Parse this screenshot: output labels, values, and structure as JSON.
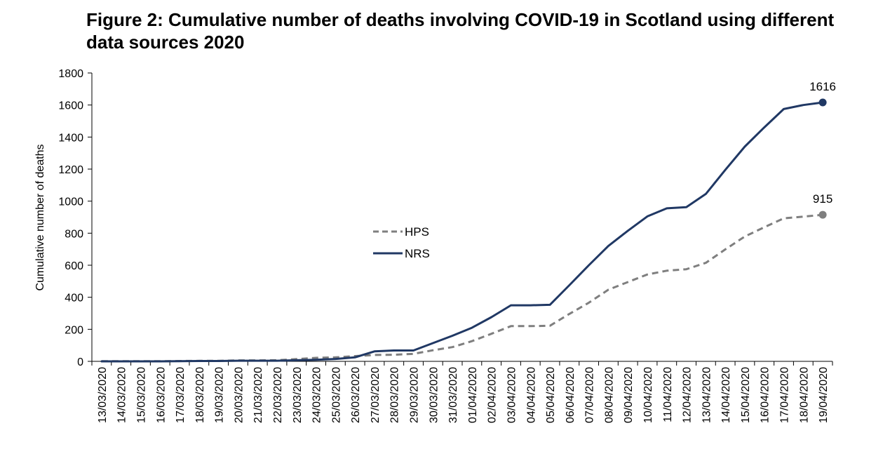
{
  "chart_data": {
    "type": "line",
    "title": "Figure 2: Cumulative number of deaths involving COVID-19 in Scotland using different data sources 2020",
    "xlabel": "",
    "ylabel": "Cumulative number of deaths",
    "ylim": [
      0,
      1800
    ],
    "yticks": [
      0,
      200,
      400,
      600,
      800,
      1000,
      1200,
      1400,
      1600,
      1800
    ],
    "grid": false,
    "legend_position": "center",
    "categories": [
      "13/03/2020",
      "14/03/2020",
      "15/03/2020",
      "16/03/2020",
      "17/03/2020",
      "18/03/2020",
      "19/03/2020",
      "20/03/2020",
      "21/03/2020",
      "22/03/2020",
      "23/03/2020",
      "24/03/2020",
      "25/03/2020",
      "26/03/2020",
      "27/03/2020",
      "28/03/2020",
      "29/03/2020",
      "30/03/2020",
      "31/03/2020",
      "01/04/2020",
      "02/04/2020",
      "03/04/2020",
      "04/04/2020",
      "05/04/2020",
      "06/04/2020",
      "07/04/2020",
      "08/04/2020",
      "09/04/2020",
      "10/04/2020",
      "11/04/2020",
      "12/04/2020",
      "13/04/2020",
      "14/04/2020",
      "15/04/2020",
      "16/04/2020",
      "17/04/2020",
      "18/04/2020",
      "19/04/2020"
    ],
    "series": [
      {
        "name": "HPS",
        "color": "#7f7f7f",
        "style": "dashed",
        "values": [
          1,
          1,
          1,
          1,
          2,
          3,
          3,
          6,
          6,
          7,
          14,
          22,
          25,
          33,
          40,
          41,
          47,
          69,
          89,
          126,
          172,
          220,
          220,
          222,
          296,
          366,
          447,
          495,
          542,
          566,
          575,
          615,
          699,
          779,
          837,
          893,
          903,
          915
        ],
        "end_label": "915"
      },
      {
        "name": "NRS",
        "color": "#203864",
        "style": "solid",
        "values": [
          0,
          0,
          0,
          0,
          1,
          2,
          2,
          4,
          4,
          4,
          7,
          10,
          15,
          25,
          62,
          68,
          68,
          114,
          160,
          210,
          276,
          350,
          350,
          353,
          475,
          600,
          720,
          815,
          905,
          955,
          962,
          1045,
          1195,
          1340,
          1460,
          1575,
          1600,
          1616
        ],
        "end_label": "1616"
      }
    ]
  }
}
